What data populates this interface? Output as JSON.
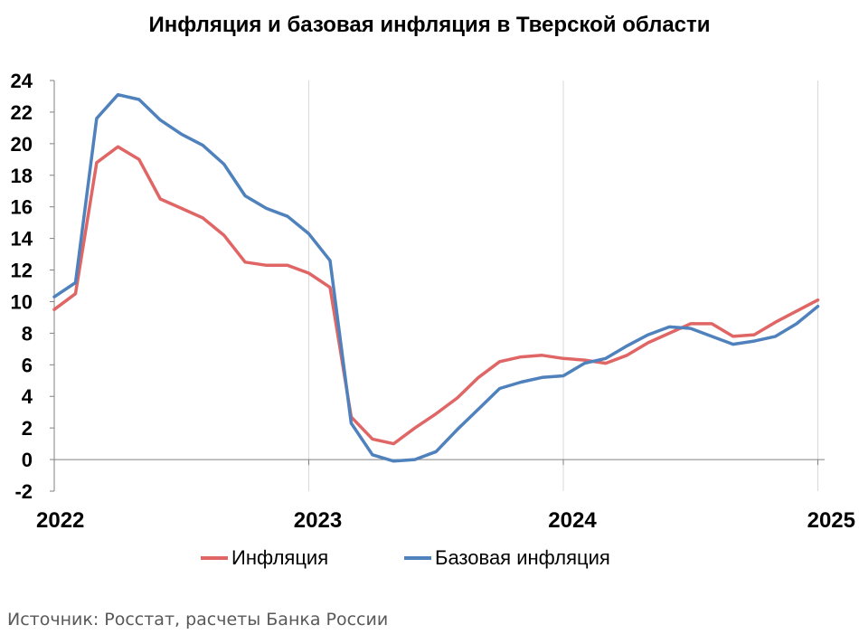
{
  "chart_data": {
    "type": "line",
    "title": "Инфляция и базовая инфляция в Тверской области",
    "xlabel": "",
    "ylabel": "",
    "ylim": [
      -2,
      24
    ],
    "yticks": [
      24,
      22,
      20,
      18,
      16,
      14,
      12,
      10,
      8,
      6,
      4,
      2,
      0,
      -2
    ],
    "xticks": [
      "2022",
      "2023",
      "2024",
      "2025"
    ],
    "grid": "vertical gridlines at year marks",
    "legend_position": "bottom",
    "x": [
      "2022-01",
      "2022-02",
      "2022-03",
      "2022-04",
      "2022-05",
      "2022-06",
      "2022-07",
      "2022-08",
      "2022-09",
      "2022-10",
      "2022-11",
      "2022-12",
      "2023-01",
      "2023-02",
      "2023-03",
      "2023-04",
      "2023-05",
      "2023-06",
      "2023-07",
      "2023-08",
      "2023-09",
      "2023-10",
      "2023-11",
      "2023-12",
      "2024-01",
      "2024-02",
      "2024-03",
      "2024-04",
      "2024-05",
      "2024-06",
      "2024-07",
      "2024-08",
      "2024-09",
      "2024-10",
      "2024-11",
      "2024-12",
      "2025-01"
    ],
    "series": [
      {
        "name": "Инфляция",
        "color": "#E06666",
        "values": [
          9.5,
          10.5,
          18.8,
          19.8,
          19.0,
          16.5,
          15.9,
          15.3,
          14.2,
          12.5,
          12.3,
          12.3,
          11.8,
          10.9,
          2.7,
          1.3,
          1.0,
          2.0,
          2.9,
          3.9,
          5.2,
          6.2,
          6.5,
          6.6,
          6.4,
          6.3,
          6.1,
          6.6,
          7.4,
          8.0,
          8.6,
          8.6,
          7.8,
          7.9,
          8.7,
          9.4,
          10.1
        ]
      },
      {
        "name": "Базовая инфляция",
        "color": "#4F81BD",
        "values": [
          10.3,
          11.2,
          21.6,
          23.1,
          22.8,
          21.5,
          20.6,
          19.9,
          18.7,
          16.7,
          15.9,
          15.4,
          14.3,
          12.6,
          2.3,
          0.3,
          -0.1,
          0.0,
          0.5,
          1.9,
          3.2,
          4.5,
          4.9,
          5.2,
          5.3,
          6.1,
          6.4,
          7.2,
          7.9,
          8.4,
          8.3,
          7.8,
          7.3,
          7.5,
          7.8,
          8.6,
          9.7
        ]
      }
    ]
  },
  "legend": {
    "items": [
      {
        "label": "Инфляция",
        "color": "#E06666"
      },
      {
        "label": "Базовая инфляция",
        "color": "#4F81BD"
      }
    ]
  },
  "source": "Источник: Росстат, расчеты Банка России"
}
